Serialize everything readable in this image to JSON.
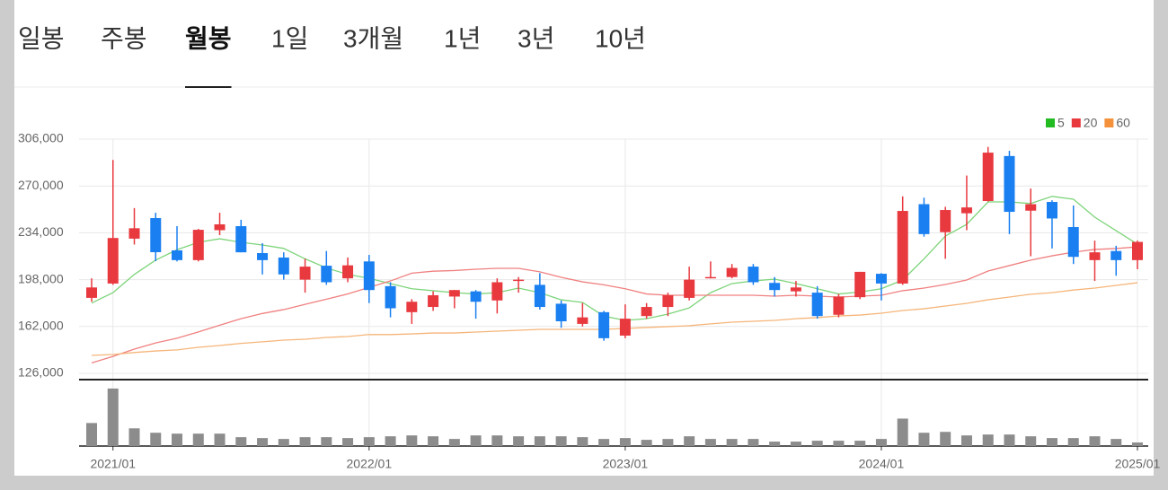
{
  "tabs": [
    "일봉",
    "주봉",
    "월봉",
    "1일",
    "3개월",
    "1년",
    "3년",
    "10년"
  ],
  "selected_tab": 2,
  "chart_data": {
    "type": "candlestick",
    "categories": [
      null,
      "2021/01",
      null,
      null,
      null,
      null,
      null,
      null,
      null,
      null,
      null,
      null,
      null,
      "2022/01",
      null,
      null,
      null,
      null,
      null,
      null,
      null,
      null,
      null,
      null,
      null,
      "2023/01",
      null,
      null,
      null,
      null,
      null,
      null,
      null,
      null,
      null,
      null,
      null,
      "2024/01",
      null,
      null,
      null,
      null,
      null,
      null,
      null,
      null,
      null,
      null,
      null,
      "2025/01"
    ],
    "open": [
      184000,
      195000,
      229500,
      245300,
      220500,
      213000,
      236000,
      239100,
      218400,
      215000,
      198000,
      208700,
      199000,
      212000,
      193000,
      173000,
      177000,
      185000,
      189000,
      182000,
      197000,
      194000,
      179500,
      164000,
      173000,
      155000,
      170000,
      177000,
      184000,
      199000,
      200000,
      208000,
      195500,
      189000,
      188000,
      171000,
      184500,
      202500,
      195000,
      256000,
      234500,
      249000,
      258400,
      293000,
      251000,
      257700,
      238400,
      213000,
      220000,
      213000
    ],
    "high": [
      199000,
      290000,
      253000,
      249400,
      239100,
      237000,
      249400,
      244000,
      226000,
      219000,
      214000,
      220000,
      215000,
      217000,
      196000,
      183000,
      189000,
      190000,
      190000,
      199000,
      200000,
      203000,
      182000,
      180000,
      174000,
      179000,
      180000,
      188000,
      208000,
      212000,
      210000,
      210000,
      200000,
      197000,
      193000,
      187000,
      204000,
      203000,
      262000,
      261000,
      254000,
      278000,
      300000,
      297000,
      268000,
      259000,
      255000,
      228000,
      224000,
      228000
    ],
    "low": [
      181000,
      194000,
      225000,
      212200,
      212000,
      212000,
      232200,
      219000,
      202000,
      198000,
      188000,
      194000,
      196000,
      180000,
      169000,
      164000,
      174000,
      176000,
      168000,
      172000,
      188000,
      175000,
      161000,
      162000,
      151000,
      153000,
      168000,
      170000,
      182000,
      199000,
      199000,
      194000,
      185000,
      185000,
      168000,
      169000,
      183000,
      182000,
      194000,
      231000,
      214000,
      236000,
      258000,
      233000,
      216000,
      222000,
      210000,
      197000,
      201000,
      206000
    ],
    "close": [
      192000,
      230000,
      237500,
      219100,
      213000,
      236300,
      240500,
      219000,
      213000,
      202000,
      208000,
      196000,
      209000,
      190000,
      176000,
      181000,
      186000,
      190000,
      181000,
      196000,
      198000,
      177000,
      166000,
      169000,
      153000,
      168000,
      177000,
      186000,
      198000,
      200000,
      207000,
      196000,
      190000,
      192000,
      170000,
      185000,
      204000,
      195000,
      250800,
      233000,
      251500,
      253500,
      295600,
      250100,
      256000,
      245000,
      215500,
      219000,
      213000,
      227000
    ],
    "up_color": "#e8393f",
    "down_color": "#1a7ff0",
    "series": [
      {
        "name": "5",
        "color": "#7dd47a",
        "values": [
          180000,
          188000,
          202000,
          213000,
          221000,
          226700,
          229400,
          226700,
          224600,
          222000,
          214000,
          207000,
          202000,
          199000,
          195000,
          191000,
          189500,
          188000,
          187000,
          188000,
          191500,
          188000,
          182500,
          180500,
          170000,
          166700,
          168000,
          171500,
          176300,
          188000,
          195000,
          197000,
          198400,
          195000,
          191000,
          187000,
          188500,
          191000,
          197700,
          214000,
          231500,
          240500,
          257700,
          257700,
          256500,
          262000,
          259800,
          246000,
          235600,
          225300
        ]
      },
      {
        "name": "20",
        "color": "#f08080",
        "values": [
          134000,
          139000,
          144600,
          149400,
          153000,
          157800,
          163000,
          168000,
          172000,
          175000,
          179000,
          183000,
          187000,
          192000,
          197000,
          203000,
          204500,
          205000,
          206000,
          206700,
          206700,
          204000,
          199800,
          196300,
          194000,
          191000,
          187000,
          186000,
          186000,
          186000,
          186000,
          186000,
          185300,
          186000,
          185300,
          184600,
          185300,
          186000,
          189500,
          191500,
          194300,
          197700,
          204600,
          208800,
          213000,
          216300,
          219100,
          221200,
          221900,
          223200
        ]
      },
      {
        "name": "60",
        "color": "#f5b57a",
        "values": [
          139800,
          140500,
          142000,
          143200,
          144000,
          146000,
          147400,
          149000,
          150200,
          151500,
          152200,
          153600,
          154300,
          155800,
          155800,
          156300,
          157000,
          157000,
          157700,
          158400,
          159100,
          159800,
          159800,
          159800,
          159800,
          160500,
          161200,
          161900,
          162600,
          164000,
          165300,
          166000,
          166700,
          168000,
          168800,
          170100,
          170800,
          172200,
          174300,
          175600,
          177700,
          179800,
          182500,
          184600,
          186800,
          188000,
          190000,
          191500,
          193600,
          195600
        ]
      }
    ],
    "legend_colors": [
      "#22bb22",
      "#e8393f",
      "#f5913a"
    ],
    "volume": [
      26,
      65,
      20,
      15,
      14,
      14,
      14,
      10,
      9,
      8,
      10,
      10,
      9,
      10,
      11,
      12,
      11,
      8,
      12,
      12,
      11,
      11,
      11,
      10,
      8,
      9,
      7,
      8,
      11,
      8,
      8,
      8,
      5,
      5,
      6,
      6,
      6,
      8,
      31,
      15,
      16,
      12,
      13,
      13,
      11,
      9,
      9,
      11,
      8,
      4
    ],
    "volume_color": "#8c8c8c",
    "volume_ylim": [
      0,
      70
    ],
    "ylim": [
      126000,
      306000
    ],
    "yticks": [
      {
        "value": 126000,
        "label": "126,000"
      },
      {
        "value": 162000,
        "label": "162,000"
      },
      {
        "value": 198000,
        "label": "198,000"
      },
      {
        "value": 234000,
        "label": "234,000"
      },
      {
        "value": 270000,
        "label": "270,000"
      },
      {
        "value": 306000,
        "label": "306,000"
      }
    ],
    "grid": true
  }
}
